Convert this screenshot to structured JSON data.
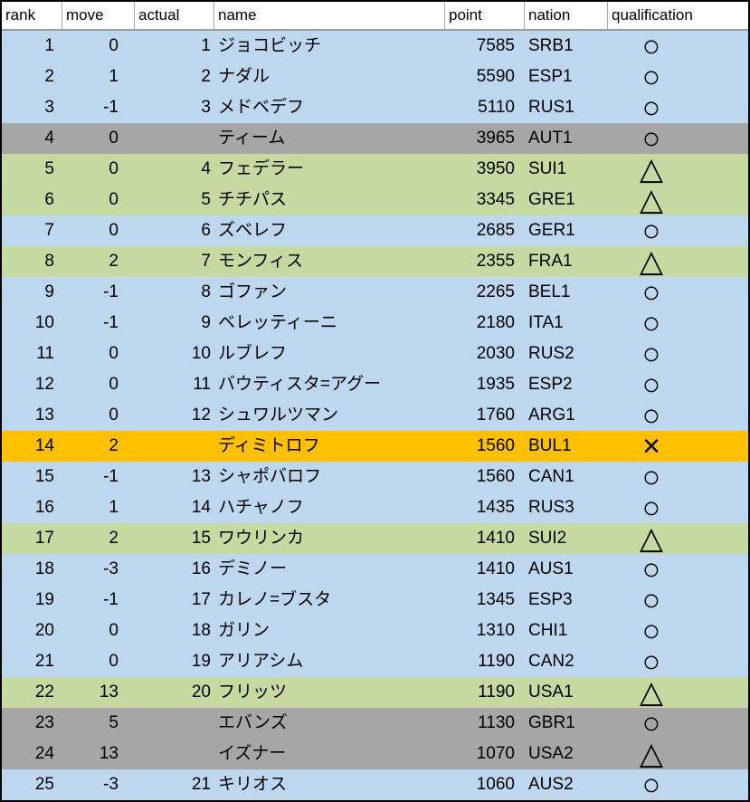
{
  "colors": {
    "blue": "#BDD7EE",
    "green": "#C5D9A0",
    "gray": "#A6A6A6",
    "orange": "#FFC000"
  },
  "table": {
    "header": {
      "rank": "rank",
      "move": "move",
      "actual": "actual",
      "name": "name",
      "point": "point",
      "nation": "nation",
      "qualification": "qualification"
    },
    "rows": [
      {
        "rank": "1",
        "move": "0",
        "actual": "1",
        "name": "ジョコビッチ",
        "point": "7585",
        "nation": "SRB1",
        "qualification": "○",
        "color": "blue"
      },
      {
        "rank": "2",
        "move": "1",
        "actual": "2",
        "name": "ナダル",
        "point": "5590",
        "nation": "ESP1",
        "qualification": "○",
        "color": "blue"
      },
      {
        "rank": "3",
        "move": "-1",
        "actual": "3",
        "name": "メドベデフ",
        "point": "5110",
        "nation": "RUS1",
        "qualification": "○",
        "color": "blue"
      },
      {
        "rank": "4",
        "move": "0",
        "actual": "",
        "name": "ティーム",
        "point": "3965",
        "nation": "AUT1",
        "qualification": "○",
        "color": "gray"
      },
      {
        "rank": "5",
        "move": "0",
        "actual": "4",
        "name": "フェデラー",
        "point": "3950",
        "nation": "SUI1",
        "qualification": "△",
        "color": "green"
      },
      {
        "rank": "6",
        "move": "0",
        "actual": "5",
        "name": "チチパス",
        "point": "3345",
        "nation": "GRE1",
        "qualification": "△",
        "color": "green"
      },
      {
        "rank": "7",
        "move": "0",
        "actual": "6",
        "name": "ズベレフ",
        "point": "2685",
        "nation": "GER1",
        "qualification": "○",
        "color": "blue"
      },
      {
        "rank": "8",
        "move": "2",
        "actual": "7",
        "name": "モンフィス",
        "point": "2355",
        "nation": "FRA1",
        "qualification": "△",
        "color": "green"
      },
      {
        "rank": "9",
        "move": "-1",
        "actual": "8",
        "name": "ゴファン",
        "point": "2265",
        "nation": "BEL1",
        "qualification": "○",
        "color": "blue"
      },
      {
        "rank": "10",
        "move": "-1",
        "actual": "9",
        "name": "ベレッティーニ",
        "point": "2180",
        "nation": "ITA1",
        "qualification": "○",
        "color": "blue"
      },
      {
        "rank": "11",
        "move": "0",
        "actual": "10",
        "name": "ルブレフ",
        "point": "2030",
        "nation": "RUS2",
        "qualification": "○",
        "color": "blue"
      },
      {
        "rank": "12",
        "move": "0",
        "actual": "11",
        "name": "バウティスタ=アグー",
        "point": "1935",
        "nation": "ESP2",
        "qualification": "○",
        "color": "blue"
      },
      {
        "rank": "13",
        "move": "0",
        "actual": "12",
        "name": "シュワルツマン",
        "point": "1760",
        "nation": "ARG1",
        "qualification": "○",
        "color": "blue"
      },
      {
        "rank": "14",
        "move": "2",
        "actual": "",
        "name": "ディミトロフ",
        "point": "1560",
        "nation": "BUL1",
        "qualification": "×",
        "color": "orange"
      },
      {
        "rank": "15",
        "move": "-1",
        "actual": "13",
        "name": "シャポバロフ",
        "point": "1560",
        "nation": "CAN1",
        "qualification": "○",
        "color": "blue"
      },
      {
        "rank": "16",
        "move": "1",
        "actual": "14",
        "name": "ハチャノフ",
        "point": "1435",
        "nation": "RUS3",
        "qualification": "○",
        "color": "blue"
      },
      {
        "rank": "17",
        "move": "2",
        "actual": "15",
        "name": "ワウリンカ",
        "point": "1410",
        "nation": "SUI2",
        "qualification": "△",
        "color": "green"
      },
      {
        "rank": "18",
        "move": "-3",
        "actual": "16",
        "name": "デミノー",
        "point": "1410",
        "nation": "AUS1",
        "qualification": "○",
        "color": "blue"
      },
      {
        "rank": "19",
        "move": "-1",
        "actual": "17",
        "name": "カレノ=ブスタ",
        "point": "1345",
        "nation": "ESP3",
        "qualification": "○",
        "color": "blue"
      },
      {
        "rank": "20",
        "move": "0",
        "actual": "18",
        "name": "ガリン",
        "point": "1310",
        "nation": "CHI1",
        "qualification": "○",
        "color": "blue"
      },
      {
        "rank": "21",
        "move": "0",
        "actual": "19",
        "name": "アリアシム",
        "point": "1190",
        "nation": "CAN2",
        "qualification": "○",
        "color": "blue"
      },
      {
        "rank": "22",
        "move": "13",
        "actual": "20",
        "name": "フリッツ",
        "point": "1190",
        "nation": "USA1",
        "qualification": "△",
        "color": "green"
      },
      {
        "rank": "23",
        "move": "5",
        "actual": "",
        "name": "エバンズ",
        "point": "1130",
        "nation": "GBR1",
        "qualification": "○",
        "color": "gray"
      },
      {
        "rank": "24",
        "move": "13",
        "actual": "",
        "name": "イズナー",
        "point": "1070",
        "nation": "USA2",
        "qualification": "△",
        "color": "gray"
      },
      {
        "rank": "25",
        "move": "-3",
        "actual": "21",
        "name": "キリオス",
        "point": "1060",
        "nation": "AUS2",
        "qualification": "○",
        "color": "blue"
      }
    ]
  }
}
